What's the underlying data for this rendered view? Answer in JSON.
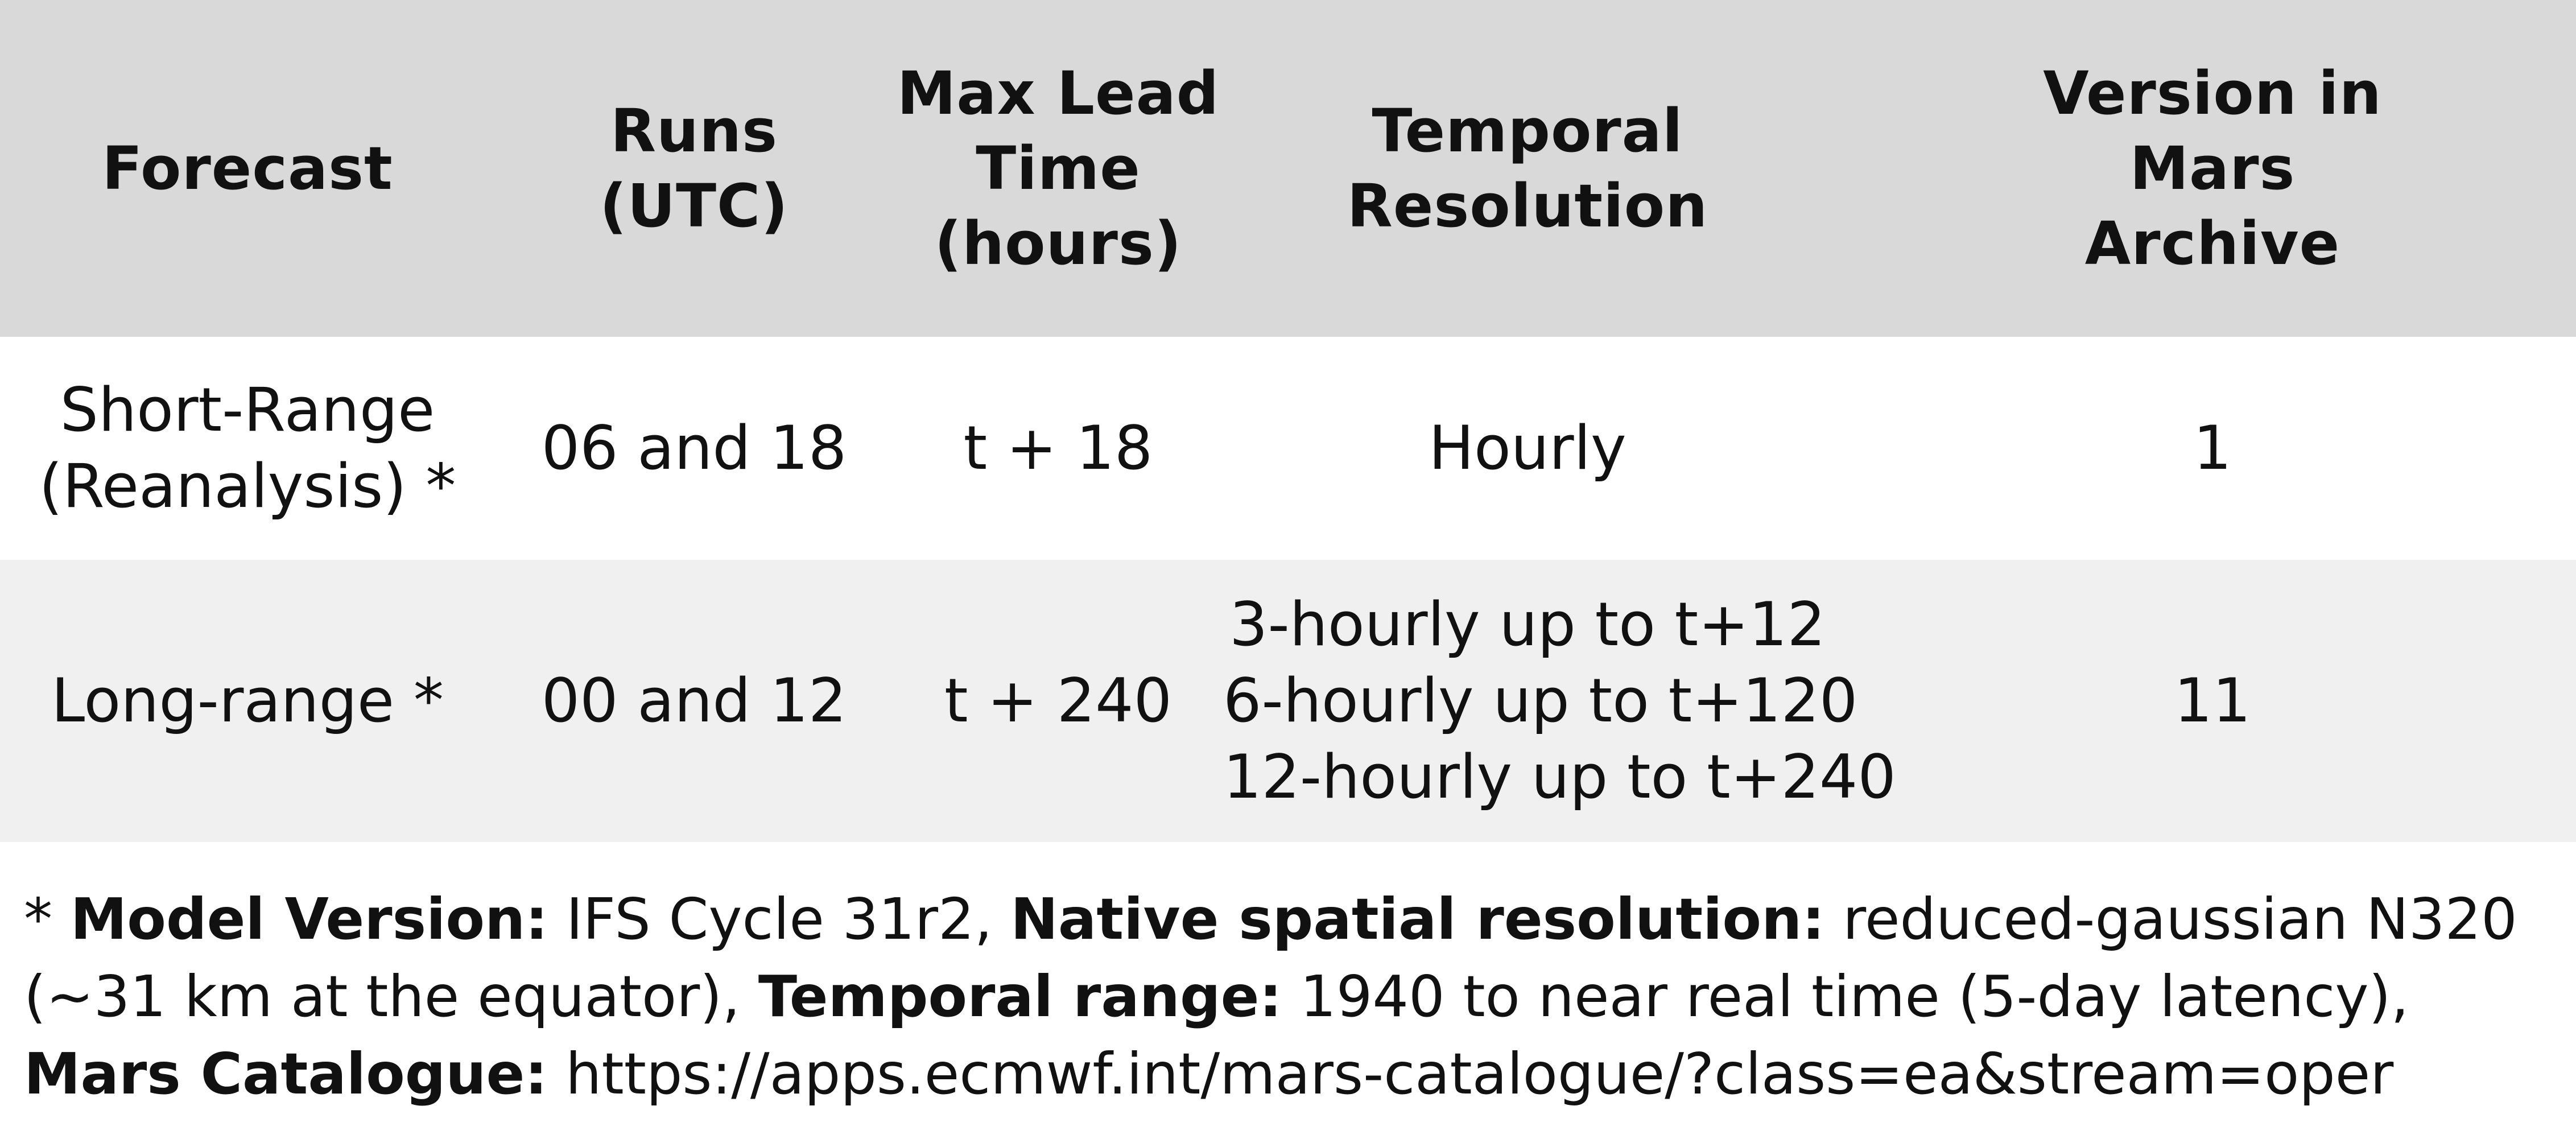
{
  "table": {
    "headers": [
      [
        "Forecast"
      ],
      [
        "Runs",
        "(UTC)"
      ],
      [
        "Max Lead",
        "Time",
        "(hours)"
      ],
      [
        "Temporal",
        "Resolution"
      ],
      [
        "Version in",
        "Mars",
        "Archive"
      ]
    ],
    "rows": [
      {
        "forecast": [
          "Short-Range",
          "(Reanalysis) *"
        ],
        "runs": "06 and 18",
        "max_lead": "t + 18",
        "temporal": [
          "Hourly"
        ],
        "version": "1"
      },
      {
        "forecast": [
          "Long-range *"
        ],
        "runs": "00 and 12",
        "max_lead": "t + 240",
        "temporal": [
          "3-hourly up to t+12",
          "6-hourly up to t+120",
          "12-hourly up to t+240"
        ],
        "version": "11"
      }
    ]
  },
  "footnote": {
    "star": "* ",
    "model_version_label": "Model Version:",
    "model_version_value": " IFS Cycle 31r2, ",
    "spatial_label": "Native spatial resolution:",
    "spatial_value": " reduced-gaussian N320",
    "spatial_value_cont": "(~31 km at the equator), ",
    "temporal_label": "Temporal range:",
    "temporal_value": " 1940 to near real time (5-day latency),",
    "catalogue_label": "Mars Catalogue:",
    "catalogue_value": " https://apps.ecmwf.int/mars-catalogue/?class=ea&stream=oper"
  }
}
